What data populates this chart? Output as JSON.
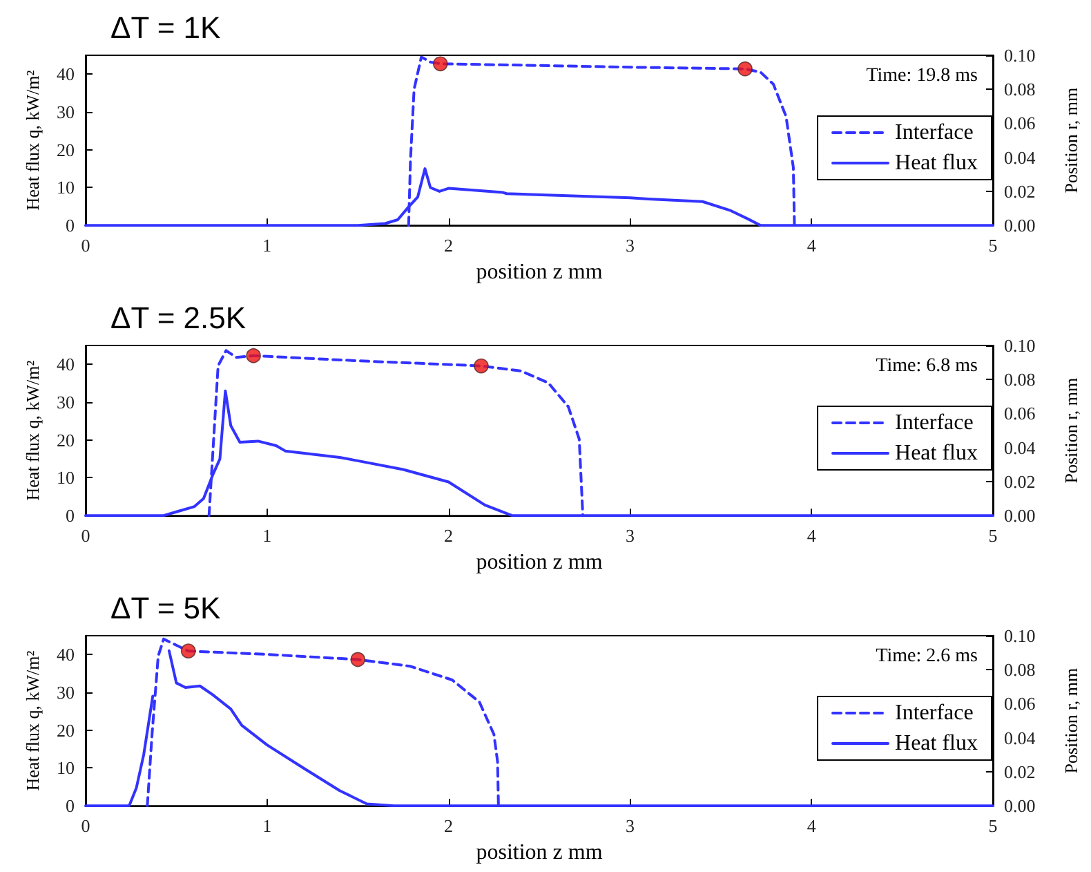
{
  "chart_data": [
    {
      "type": "line",
      "title": "ΔT = 1K",
      "xlabel": "position z mm",
      "ylabel": "Heat flux q, kW/m²",
      "y2label": "Position r, mm",
      "annotations": [
        "Time: 19.8 ms"
      ],
      "xlim": [
        0,
        5
      ],
      "xticks": [
        0,
        1,
        2,
        3,
        4,
        5
      ],
      "ylim": [
        0,
        45
      ],
      "yticks": [
        0,
        10,
        20,
        30,
        40
      ],
      "y2lim": [
        0,
        0.1
      ],
      "y2ticks": [
        {
          "value": 0,
          "label": "0.00"
        },
        {
          "value": 0.02,
          "label": "0.02"
        },
        {
          "value": 0.04,
          "label": "0.04"
        },
        {
          "value": 0.06,
          "label": "0.06"
        },
        {
          "value": 0.08,
          "label": "0.08"
        },
        {
          "value": 0.1,
          "label": "0.10"
        }
      ],
      "grid": false,
      "legend": "right",
      "marker": "none",
      "series": [
        {
          "name": "Interface",
          "axis": "y2",
          "line_style": "dashed",
          "color": "#3333ff",
          "x": [
            1.78,
            1.79,
            1.81,
            1.85,
            1.9,
            1.955,
            2.5,
            3.0,
            3.634,
            3.72,
            3.79,
            3.86,
            3.9,
            3.906
          ],
          "values": [
            0,
            0.038,
            0.08,
            0.099,
            0.096,
            0.095,
            0.094,
            0.093,
            0.092,
            0.09,
            0.083,
            0.064,
            0.034,
            0
          ]
        },
        {
          "name": "Heat flux",
          "axis": "y",
          "line_style": "solid",
          "color": "#3333ff",
          "x": [
            0,
            1.5,
            1.65,
            1.72,
            1.78,
            1.83,
            1.87,
            1.9,
            1.95,
            2.0,
            2.3,
            2.32,
            3.0,
            3.1,
            3.4,
            3.55,
            3.65,
            3.72,
            5
          ],
          "values": [
            0,
            0,
            0.5,
            1.5,
            4.9,
            7.5,
            15,
            10,
            9,
            9.8,
            8.7,
            8.4,
            7.3,
            7,
            6.3,
            4,
            1.7,
            0,
            0
          ]
        },
        {
          "type": "scatter",
          "axis": "y2",
          "marker": "circle",
          "color": "#ee1111",
          "x": [
            1.955,
            3.634
          ],
          "values": [
            0.095,
            0.092
          ]
        }
      ]
    },
    {
      "type": "line",
      "title": "ΔT = 2.5K",
      "xlabel": "position z mm",
      "ylabel": "Heat flux q, kW/m²",
      "y2label": "Position r, mm",
      "annotations": [
        "Time: 6.8 ms"
      ],
      "xlim": [
        0,
        5
      ],
      "xticks": [
        0,
        1,
        2,
        3,
        4,
        5
      ],
      "ylim": [
        0,
        45
      ],
      "yticks": [
        0,
        10,
        20,
        30,
        40
      ],
      "y2lim": [
        0,
        0.1
      ],
      "y2ticks": [
        {
          "value": 0,
          "label": "0.00"
        },
        {
          "value": 0.02,
          "label": "0.02"
        },
        {
          "value": 0.04,
          "label": "0.04"
        },
        {
          "value": 0.06,
          "label": "0.06"
        },
        {
          "value": 0.08,
          "label": "0.08"
        },
        {
          "value": 0.1,
          "label": "0.10"
        }
      ],
      "grid": false,
      "legend": "right",
      "marker": "none",
      "series": [
        {
          "name": "Interface",
          "axis": "y2",
          "line_style": "dashed",
          "color": "#3333ff",
          "x": [
            0.68,
            0.73,
            0.774,
            0.83,
            0.925,
            1.5,
            2.18,
            2.4,
            2.55,
            2.66,
            2.72,
            2.74
          ],
          "values": [
            0,
            0.088,
            0.097,
            0.093,
            0.094,
            0.091,
            0.088,
            0.085,
            0.078,
            0.064,
            0.045,
            0
          ]
        },
        {
          "name": "Heat flux",
          "axis": "y",
          "line_style": "solid",
          "color": "#3333ff",
          "x": [
            0,
            0.43,
            0.5,
            0.6,
            0.65,
            0.7,
            0.74,
            0.77,
            0.8,
            0.85,
            0.95,
            1.05,
            1.1,
            1.4,
            1.5,
            1.75,
            2.0,
            2.2,
            2.35,
            5
          ],
          "values": [
            0,
            0,
            1,
            2.4,
            4.5,
            10.7,
            15,
            33,
            23.8,
            19.4,
            19.7,
            18.5,
            17.1,
            15.4,
            14.5,
            12.2,
            8.9,
            2.8,
            0,
            0
          ]
        },
        {
          "type": "scatter",
          "axis": "y2",
          "marker": "circle",
          "color": "#ee1111",
          "x": [
            0.925,
            2.18
          ],
          "values": [
            0.094,
            0.088
          ]
        }
      ]
    },
    {
      "type": "line",
      "title": "ΔT = 5K",
      "xlabel": "position z mm",
      "ylabel": "Heat flux q, kW/m²",
      "y2label": "Position r, mm",
      "annotations": [
        "Time: 2.6 ms"
      ],
      "xlim": [
        0,
        5
      ],
      "xticks": [
        0,
        1,
        2,
        3,
        4,
        5
      ],
      "ylim": [
        0,
        45
      ],
      "yticks": [
        0,
        10,
        20,
        30,
        40
      ],
      "y2lim": [
        0,
        0.1
      ],
      "y2ticks": [
        {
          "value": 0,
          "label": "0.00"
        },
        {
          "value": 0.02,
          "label": "0.02"
        },
        {
          "value": 0.04,
          "label": "0.04"
        },
        {
          "value": 0.06,
          "label": "0.06"
        },
        {
          "value": 0.08,
          "label": "0.08"
        },
        {
          "value": 0.1,
          "label": "0.10"
        }
      ],
      "grid": false,
      "legend": "right",
      "marker": "none",
      "series": [
        {
          "name": "Interface",
          "axis": "y2",
          "line_style": "dashed",
          "color": "#3333ff",
          "x": [
            0.34,
            0.366,
            0.4,
            0.43,
            0.566,
            1.0,
            1.5,
            1.79,
            2.02,
            2.17,
            2.25,
            2.27,
            2.275
          ],
          "values": [
            0,
            0.042,
            0.088,
            0.098,
            0.091,
            0.089,
            0.086,
            0.082,
            0.074,
            0.061,
            0.042,
            0.026,
            0
          ]
        },
        {
          "name": "Heat flux",
          "axis": "y",
          "line_style": "solid",
          "color": "#3333ff",
          "x": [
            0,
            0.24,
            0.28,
            0.32,
            0.37,
            0.42,
            0.44,
            0.46,
            0.5,
            0.55,
            0.63,
            0.7,
            0.8,
            0.86,
            1.0,
            1.2,
            1.4,
            1.55,
            1.7,
            5
          ],
          "values": [
            0,
            0,
            4.8,
            13.5,
            29,
            null,
            null,
            41,
            32.5,
            31.3,
            31.7,
            29.4,
            25.6,
            21.3,
            16.1,
            10,
            4,
            0.5,
            0,
            0
          ]
        },
        {
          "type": "scatter",
          "axis": "y2",
          "marker": "circle",
          "color": "#ee1111",
          "x": [
            0.566,
            1.5
          ],
          "values": [
            0.091,
            0.086
          ]
        }
      ]
    }
  ]
}
